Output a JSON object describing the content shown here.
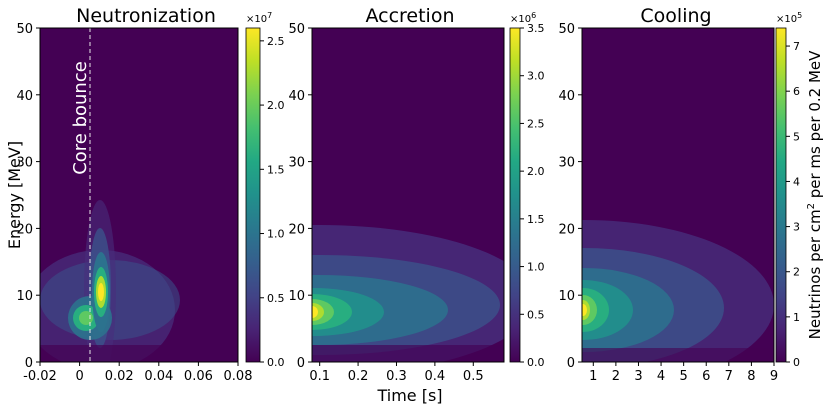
{
  "chart_data": [
    {
      "type": "heatmap",
      "title": "Neutronization",
      "xlabel": "",
      "ylabel": "Energy [MeV]",
      "xlim": [
        -0.02,
        0.08
      ],
      "ylim": [
        0,
        50
      ],
      "xticks": [
        "-0.02",
        "0",
        "0.02",
        "0.04",
        "0.06",
        "0.08"
      ],
      "xtick_values": [
        -0.02,
        0,
        0.02,
        0.04,
        0.06,
        0.08
      ],
      "yticks": [
        "0",
        "10",
        "20",
        "30",
        "40",
        "50"
      ],
      "ytick_values": [
        0,
        10,
        20,
        30,
        40,
        50
      ],
      "colorbar": {
        "min": 0,
        "max": 26000000.0,
        "ticks": [
          "0.0",
          "0.5",
          "1.0",
          "1.5",
          "2.0",
          "2.5"
        ],
        "tick_values": [
          0,
          5000000.0,
          10000000.0,
          15000000.0,
          20000000.0,
          25000000.0
        ],
        "multiplier": "×10",
        "exponent": "7"
      },
      "annotation": {
        "text": "Core bounce",
        "x": 0
      },
      "hotspots": [
        {
          "x": 0.007,
          "y": 10.5,
          "value": 26000000.0
        },
        {
          "x": -0.005,
          "y": 6.5,
          "value": 14000000.0
        }
      ]
    },
    {
      "type": "heatmap",
      "title": "Accretion",
      "xlabel": "Time [s]",
      "ylabel": "",
      "xlim": [
        0.08,
        0.58
      ],
      "ylim": [
        0,
        50
      ],
      "xticks": [
        "0.1",
        "0.2",
        "0.3",
        "0.4",
        "0.5"
      ],
      "xtick_values": [
        0.1,
        0.2,
        0.3,
        0.4,
        0.5
      ],
      "yticks": [
        "0",
        "10",
        "20",
        "30",
        "40",
        "50"
      ],
      "ytick_values": [
        0,
        10,
        20,
        30,
        40,
        50
      ],
      "colorbar": {
        "min": 0,
        "max": 3500000.0,
        "ticks": [
          "0.0",
          "0.5",
          "1.0",
          "1.5",
          "2.0",
          "2.5",
          "3.0",
          "3.5"
        ],
        "tick_values": [
          0,
          500000.0,
          1000000.0,
          1500000.0,
          2000000.0,
          2500000.0,
          3000000.0,
          3500000.0
        ],
        "multiplier": "×10",
        "exponent": "6"
      },
      "hotspots": [
        {
          "x": 0.085,
          "y": 7.5,
          "value": 3500000.0
        }
      ]
    },
    {
      "type": "heatmap",
      "title": "Cooling",
      "xlabel": "",
      "ylabel": "",
      "xlim": [
        0.5,
        9
      ],
      "ylim": [
        0,
        50
      ],
      "xticks": [
        "1",
        "2",
        "3",
        "4",
        "5",
        "6",
        "7",
        "8",
        "9"
      ],
      "xtick_values": [
        1,
        2,
        3,
        4,
        5,
        6,
        7,
        8,
        9
      ],
      "yticks": [
        "0",
        "10",
        "20",
        "30",
        "40",
        "50"
      ],
      "ytick_values": [
        0,
        10,
        20,
        30,
        40,
        50
      ],
      "colorbar": {
        "min": 0,
        "max": 740000.0,
        "ticks": [
          "0",
          "1",
          "2",
          "3",
          "4",
          "5",
          "6",
          "7"
        ],
        "tick_values": [
          0,
          100000.0,
          200000.0,
          300000.0,
          400000.0,
          500000.0,
          600000.0,
          700000.0
        ],
        "multiplier": "×10",
        "exponent": "5",
        "label_pre": "Neutrinos per cm",
        "label_sup": "2",
        "label_post": " per ms per 0.2 MeV"
      },
      "hotspots": [
        {
          "x": 0.55,
          "y": 8.5,
          "value": 740000.0
        }
      ]
    }
  ]
}
